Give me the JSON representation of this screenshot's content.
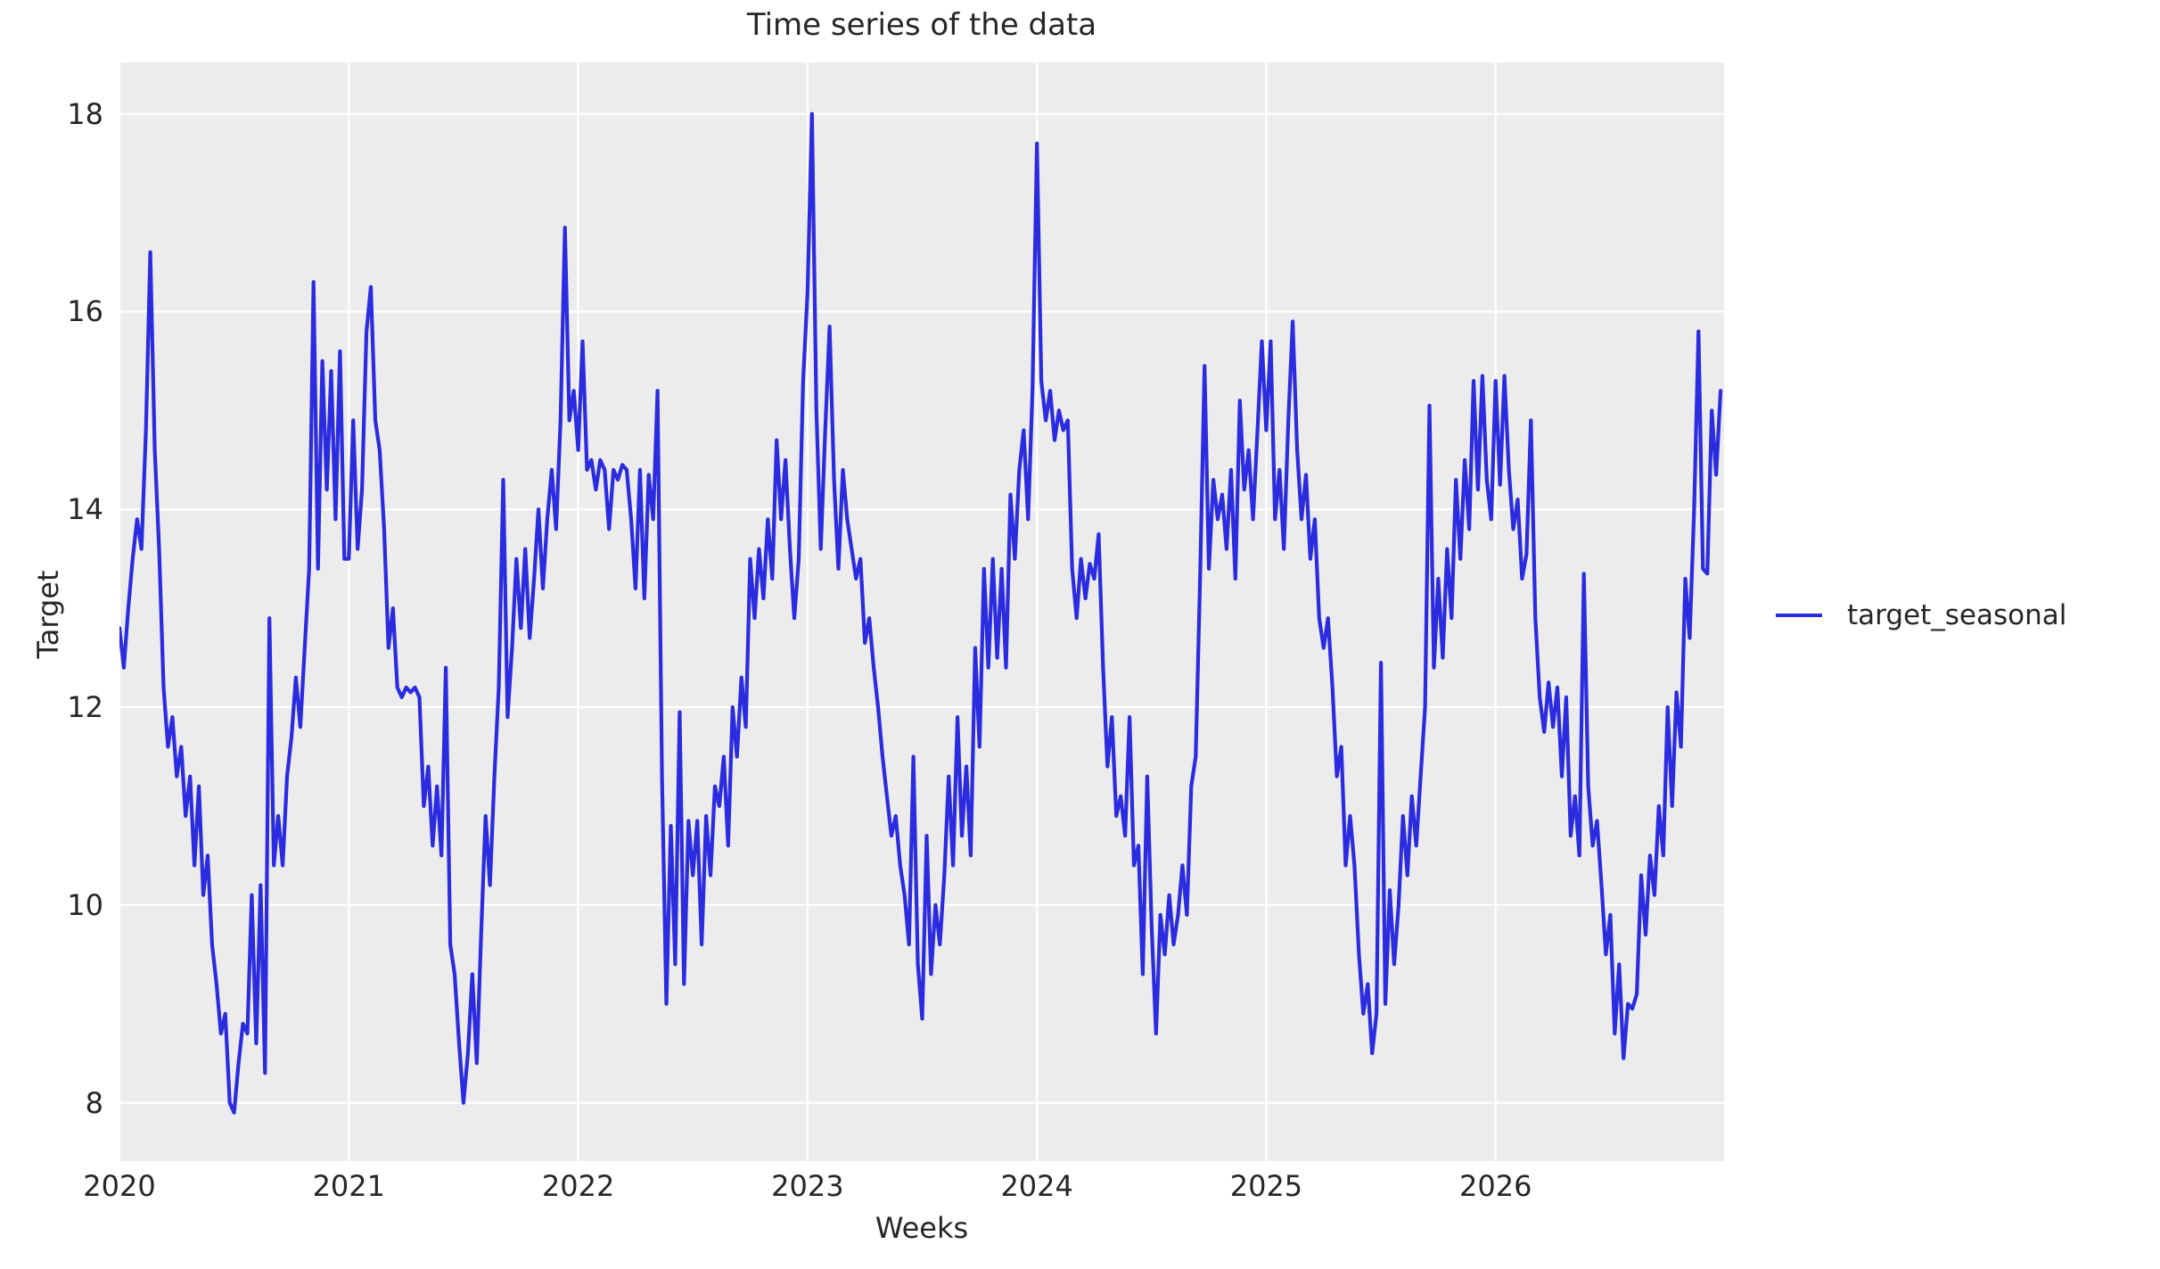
{
  "title": "Time series of the data",
  "axes": {
    "xlabel": "Weeks",
    "ylabel": "Target"
  },
  "legend": {
    "label": "target_seasonal",
    "swatch": "line-swatch"
  },
  "colors": {
    "plot_background": "#ececec",
    "grid": "#ffffff",
    "line": "#2b2be0",
    "text": "#262626",
    "figure_background": "#ffffff"
  },
  "chart_data": {
    "type": "line",
    "title": "Time series of the data",
    "xlabel": "Weeks",
    "ylabel": "Target",
    "x_ticks": [
      2020,
      2021,
      2022,
      2023,
      2024,
      2025,
      2026
    ],
    "y_ticks": [
      8,
      10,
      12,
      14,
      16,
      18
    ],
    "x_range": [
      2020.0,
      2026.996
    ],
    "y_range": [
      7.41,
      18.52
    ],
    "grid": true,
    "legend_position": "center-right-outside",
    "series": [
      {
        "name": "target_seasonal",
        "color": "#2b2be0",
        "x_start": 2020.0,
        "x_step": 0.01923077,
        "values": [
          12.8,
          12.4,
          13.0,
          13.5,
          13.9,
          13.6,
          14.8,
          16.6,
          14.6,
          13.6,
          12.2,
          11.6,
          11.9,
          11.3,
          11.6,
          10.9,
          11.3,
          10.4,
          11.2,
          10.1,
          10.5,
          9.6,
          9.2,
          8.7,
          8.9,
          8.0,
          7.9,
          8.4,
          8.8,
          8.7,
          10.1,
          8.6,
          10.2,
          8.3,
          12.9,
          10.4,
          10.9,
          10.4,
          11.3,
          11.7,
          12.3,
          11.8,
          12.6,
          13.4,
          16.3,
          13.4,
          15.5,
          14.2,
          15.4,
          13.9,
          15.6,
          13.5,
          13.5,
          14.9,
          13.6,
          14.2,
          15.8,
          16.25,
          14.9,
          14.6,
          13.8,
          12.6,
          13.0,
          12.2,
          12.1,
          12.2,
          12.15,
          12.2,
          12.1,
          11.0,
          11.4,
          10.6,
          11.2,
          10.5,
          12.4,
          9.6,
          9.3,
          8.6,
          8.0,
          8.5,
          9.3,
          8.4,
          9.7,
          10.9,
          10.2,
          11.3,
          12.2,
          14.3,
          11.9,
          12.6,
          13.5,
          12.8,
          13.6,
          12.7,
          13.3,
          14.0,
          13.2,
          13.9,
          14.4,
          13.8,
          14.9,
          16.85,
          14.9,
          15.2,
          14.6,
          15.7,
          14.4,
          14.5,
          14.2,
          14.5,
          14.4,
          13.8,
          14.4,
          14.3,
          14.45,
          14.4,
          13.9,
          13.2,
          14.4,
          13.1,
          14.35,
          13.9,
          15.2,
          11.3,
          9.0,
          10.8,
          9.4,
          11.95,
          9.2,
          10.85,
          10.3,
          10.85,
          9.6,
          10.9,
          10.3,
          11.2,
          11.0,
          11.5,
          10.6,
          12.0,
          11.5,
          12.3,
          11.8,
          13.5,
          12.9,
          13.6,
          13.1,
          13.9,
          13.3,
          14.7,
          13.9,
          14.5,
          13.6,
          12.9,
          13.5,
          15.3,
          16.2,
          18.0,
          15.0,
          13.6,
          14.8,
          15.85,
          14.3,
          13.4,
          14.4,
          13.9,
          13.6,
          13.3,
          13.5,
          12.65,
          12.9,
          12.4,
          12.0,
          11.5,
          11.1,
          10.7,
          10.9,
          10.4,
          10.1,
          9.6,
          11.5,
          9.4,
          8.85,
          10.7,
          9.3,
          10.0,
          9.6,
          10.3,
          11.3,
          10.4,
          11.9,
          10.7,
          11.4,
          10.5,
          12.6,
          11.6,
          13.4,
          12.4,
          13.5,
          12.5,
          13.4,
          12.4,
          14.15,
          13.5,
          14.4,
          14.8,
          13.9,
          15.2,
          17.7,
          15.3,
          14.9,
          15.2,
          14.7,
          15.0,
          14.8,
          14.9,
          13.4,
          12.9,
          13.5,
          13.1,
          13.45,
          13.3,
          13.75,
          12.4,
          11.4,
          11.9,
          10.9,
          11.1,
          10.7,
          11.9,
          10.4,
          10.6,
          9.3,
          11.3,
          9.8,
          8.7,
          9.9,
          9.5,
          10.1,
          9.6,
          9.9,
          10.4,
          9.9,
          11.2,
          11.5,
          13.3,
          15.45,
          13.4,
          14.3,
          13.9,
          14.15,
          13.6,
          14.4,
          13.3,
          15.1,
          14.2,
          14.6,
          13.9,
          14.8,
          15.7,
          14.8,
          15.7,
          13.9,
          14.4,
          13.6,
          14.9,
          15.9,
          14.6,
          13.9,
          14.35,
          13.5,
          13.9,
          12.9,
          12.6,
          12.9,
          12.2,
          11.3,
          11.6,
          10.4,
          10.9,
          10.4,
          9.5,
          8.9,
          9.2,
          8.5,
          8.9,
          12.45,
          9.0,
          10.15,
          9.4,
          10.0,
          10.9,
          10.3,
          11.1,
          10.6,
          11.3,
          12.0,
          15.05,
          12.4,
          13.3,
          12.5,
          13.6,
          12.9,
          14.3,
          13.5,
          14.5,
          13.8,
          15.3,
          14.2,
          15.35,
          14.3,
          13.9,
          15.3,
          14.25,
          15.35,
          14.4,
          13.8,
          14.1,
          13.3,
          13.55,
          14.9,
          12.9,
          12.1,
          11.75,
          12.25,
          11.8,
          12.2,
          11.3,
          12.1,
          10.7,
          11.1,
          10.5,
          13.35,
          11.2,
          10.6,
          10.85,
          10.2,
          9.5,
          9.9,
          8.7,
          9.4,
          8.45,
          9.0,
          8.95,
          9.1,
          10.3,
          9.7,
          10.5,
          10.1,
          11.0,
          10.5,
          12.0,
          11.0,
          12.15,
          11.6,
          13.3,
          12.7,
          14.0,
          15.8,
          13.4,
          13.35,
          15.0,
          14.35,
          15.2
        ]
      }
    ]
  }
}
